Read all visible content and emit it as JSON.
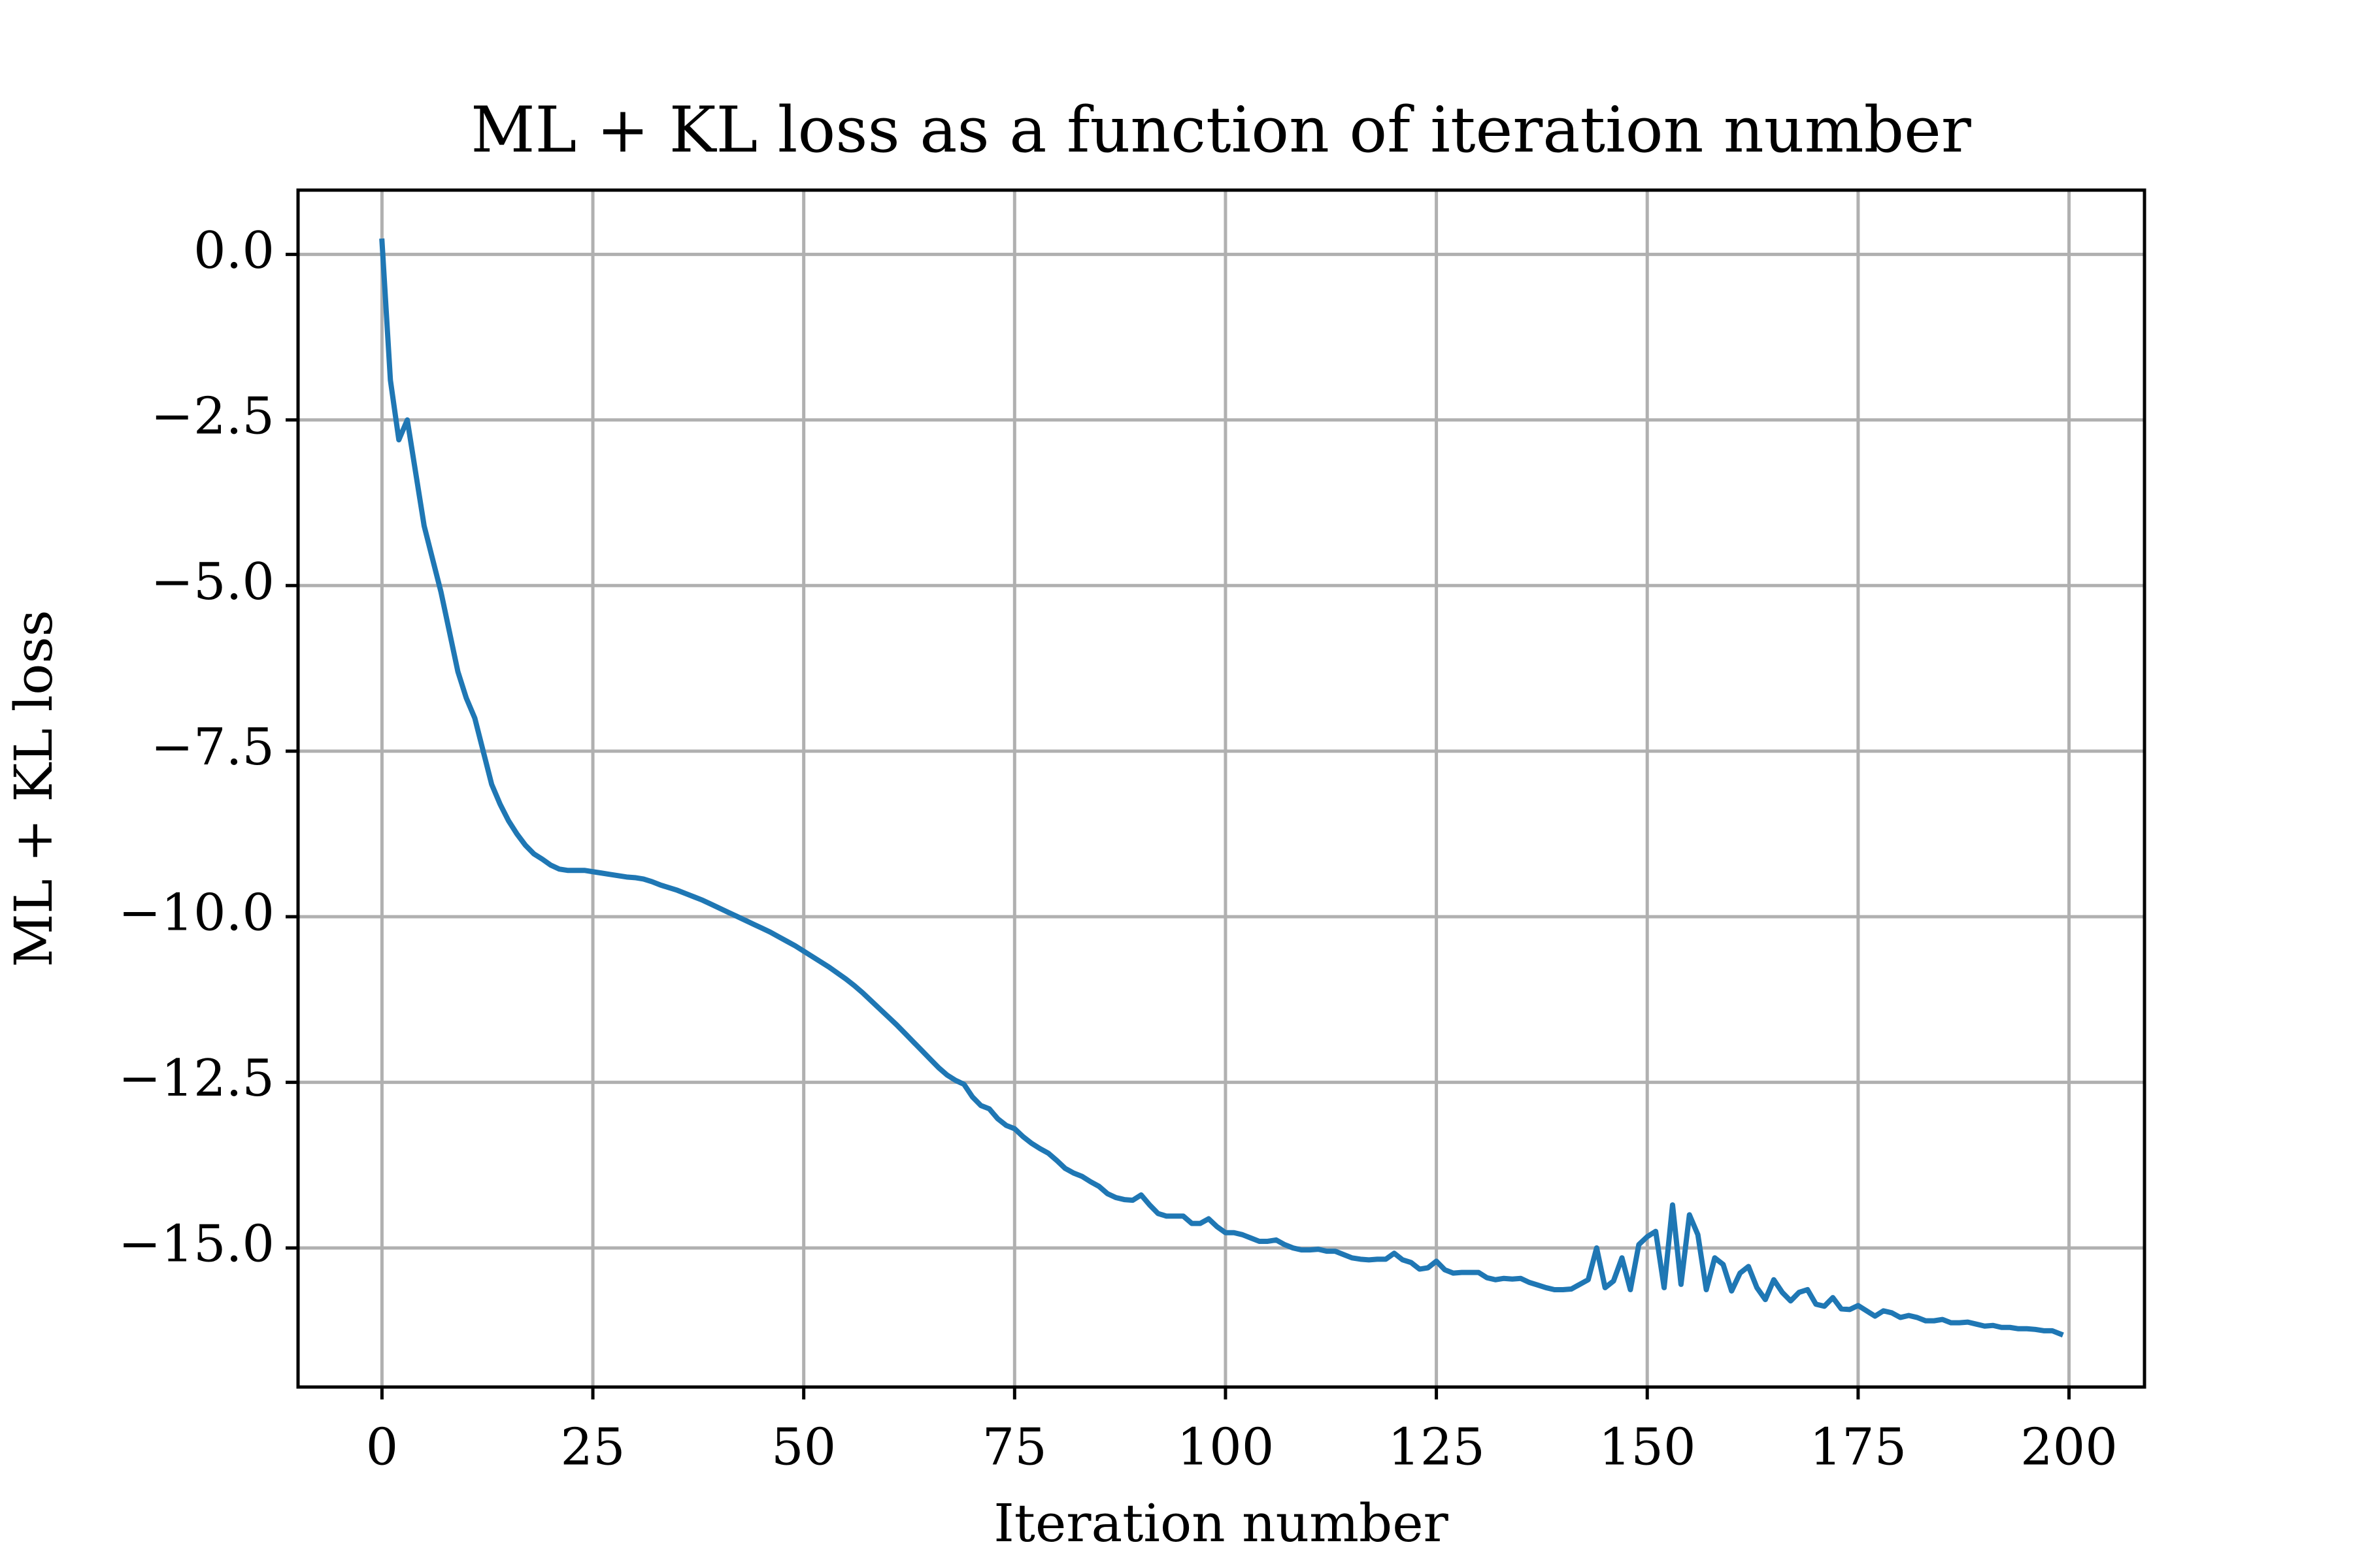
{
  "chart_data": {
    "type": "line",
    "title": "ML + KL loss as a function of iteration number",
    "x_label": "Iteration number",
    "y_label": "ML + KL loss",
    "color": "#1f77b4",
    "grid": true,
    "x": [
      0,
      1,
      2,
      3,
      4,
      5,
      6,
      7,
      8,
      9,
      10,
      11,
      12,
      13,
      14,
      15,
      16,
      17,
      18,
      19,
      20,
      21,
      22,
      23,
      24,
      25,
      26,
      27,
      28,
      29,
      30,
      31,
      32,
      33,
      34,
      35,
      36,
      37,
      38,
      39,
      40,
      41,
      42,
      43,
      44,
      45,
      46,
      47,
      48,
      49,
      50,
      51,
      52,
      53,
      54,
      55,
      56,
      57,
      58,
      59,
      60,
      61,
      62,
      63,
      64,
      65,
      66,
      67,
      68,
      69,
      70,
      71,
      72,
      73,
      74,
      75,
      76,
      77,
      78,
      79,
      80,
      81,
      82,
      83,
      84,
      85,
      86,
      87,
      88,
      89,
      90,
      91,
      92,
      93,
      94,
      95,
      96,
      97,
      98,
      99,
      100,
      101,
      102,
      103,
      104,
      105,
      106,
      107,
      108,
      109,
      110,
      111,
      112,
      113,
      114,
      115,
      116,
      117,
      118,
      119,
      120,
      121,
      122,
      123,
      124,
      125,
      126,
      127,
      128,
      129,
      130,
      131,
      132,
      133,
      134,
      135,
      136,
      137,
      138,
      139,
      140,
      141,
      142,
      143,
      144,
      145,
      146,
      147,
      148,
      149,
      150,
      151,
      152,
      153,
      154,
      155,
      156,
      157,
      158,
      159,
      160,
      161,
      162,
      163,
      164,
      165,
      166,
      167,
      168,
      169,
      170,
      171,
      172,
      173,
      174,
      175,
      176,
      177,
      178,
      179,
      180,
      181,
      182,
      183,
      184,
      185,
      186,
      187,
      188,
      189,
      190,
      191,
      192,
      193,
      194,
      195,
      196,
      197,
      198,
      199
    ],
    "values": [
      0.2,
      -1.9,
      -2.8,
      -2.5,
      -3.3,
      -4.1,
      -4.6,
      -5.1,
      -5.7,
      -6.3,
      -6.7,
      -7.0,
      -7.5,
      -8.0,
      -8.3,
      -8.55,
      -8.75,
      -8.92,
      -9.05,
      -9.13,
      -9.22,
      -9.28,
      -9.3,
      -9.3,
      -9.3,
      -9.32,
      -9.34,
      -9.36,
      -9.38,
      -9.4,
      -9.41,
      -9.43,
      -9.47,
      -9.52,
      -9.56,
      -9.6,
      -9.65,
      -9.7,
      -9.75,
      -9.81,
      -9.87,
      -9.93,
      -9.99,
      -10.05,
      -10.11,
      -10.17,
      -10.23,
      -10.3,
      -10.37,
      -10.44,
      -10.52,
      -10.6,
      -10.68,
      -10.76,
      -10.85,
      -10.94,
      -11.04,
      -11.15,
      -11.27,
      -11.39,
      -11.51,
      -11.63,
      -11.76,
      -11.89,
      -12.02,
      -12.15,
      -12.28,
      -12.39,
      -12.47,
      -12.53,
      -12.72,
      -12.85,
      -12.9,
      -13.05,
      -13.15,
      -13.2,
      -13.32,
      -13.42,
      -13.5,
      -13.57,
      -13.68,
      -13.8,
      -13.87,
      -13.92,
      -14.0,
      -14.07,
      -14.18,
      -14.24,
      -14.27,
      -14.28,
      -14.2,
      -14.35,
      -14.48,
      -14.52,
      -14.52,
      -14.52,
      -14.63,
      -14.63,
      -14.56,
      -14.68,
      -14.77,
      -14.77,
      -14.8,
      -14.85,
      -14.9,
      -14.9,
      -14.88,
      -14.95,
      -15.0,
      -15.03,
      -15.03,
      -15.02,
      -15.05,
      -15.05,
      -15.1,
      -15.15,
      -15.17,
      -15.18,
      -15.17,
      -15.17,
      -15.08,
      -15.18,
      -15.22,
      -15.32,
      -15.3,
      -15.2,
      -15.33,
      -15.38,
      -15.37,
      -15.37,
      -15.37,
      -15.45,
      -15.48,
      -15.46,
      -15.47,
      -15.46,
      -15.52,
      -15.56,
      -15.6,
      -15.63,
      -15.63,
      -15.62,
      -15.55,
      -15.48,
      -15.0,
      -15.6,
      -15.5,
      -15.15,
      -15.63,
      -14.95,
      -14.83,
      -14.75,
      -15.6,
      -14.35,
      -15.55,
      -14.5,
      -14.8,
      -15.63,
      -15.15,
      -15.25,
      -15.65,
      -15.38,
      -15.28,
      -15.6,
      -15.78,
      -15.48,
      -15.67,
      -15.8,
      -15.67,
      -15.63,
      -15.85,
      -15.88,
      -15.75,
      -15.92,
      -15.93,
      -15.87,
      -15.95,
      -16.03,
      -15.95,
      -15.98,
      -16.05,
      -16.02,
      -16.05,
      -16.1,
      -16.1,
      -16.08,
      -16.13,
      -16.13,
      -16.12,
      -16.15,
      -16.18,
      -16.17,
      -16.2,
      -16.2,
      -16.22,
      -16.22,
      -16.23,
      -16.25,
      -16.25,
      -16.3
    ],
    "xlim": [
      -9.95,
      208.95
    ],
    "ylim": [
      -17.1,
      0.97
    ],
    "xticks": [
      0,
      25,
      50,
      75,
      100,
      125,
      150,
      175,
      200
    ],
    "yticks": [
      {
        "value": 0,
        "label": "0.0"
      },
      {
        "value": -2.5,
        "label": "−2.5"
      },
      {
        "value": -5,
        "label": "−5.0"
      },
      {
        "value": -7.5,
        "label": "−7.5"
      },
      {
        "value": -10,
        "label": "−10.0"
      },
      {
        "value": -12.5,
        "label": "−12.5"
      },
      {
        "value": -15,
        "label": "−15.0"
      }
    ]
  }
}
